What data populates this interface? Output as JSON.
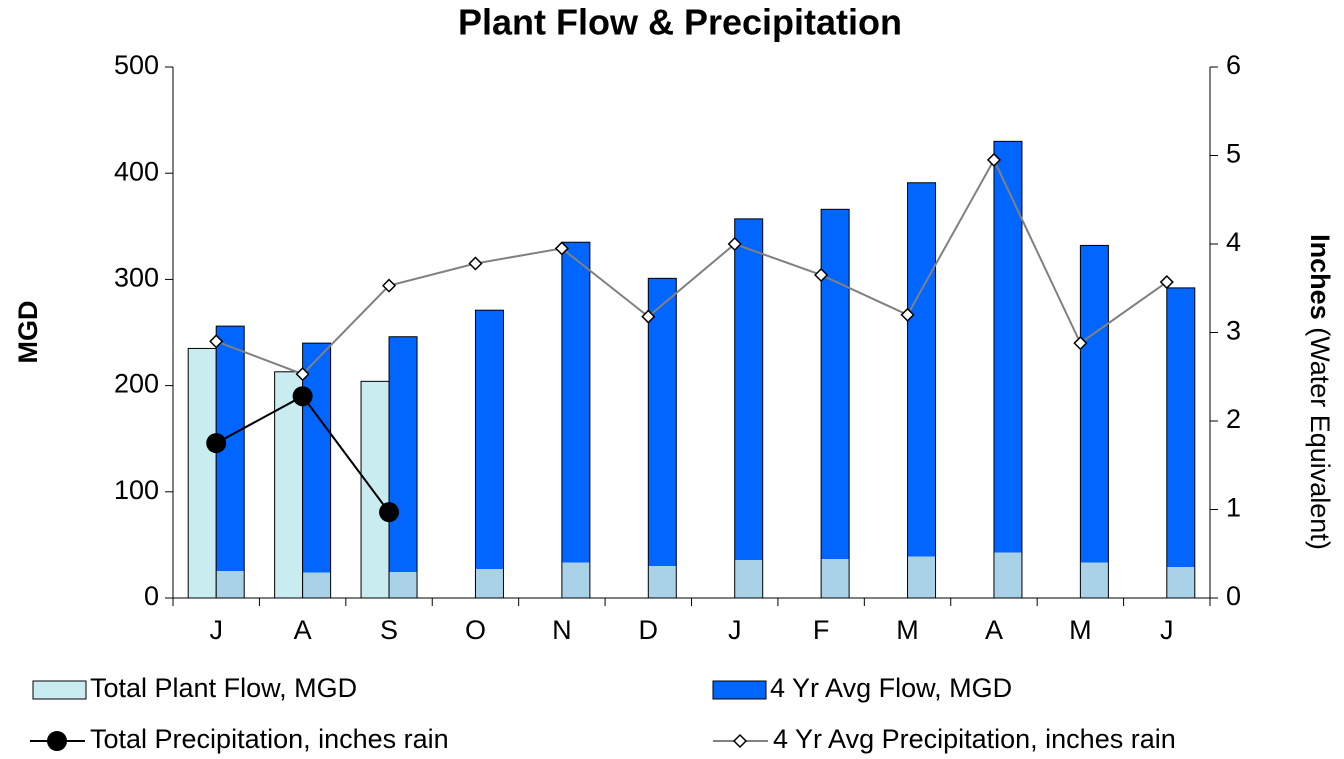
{
  "chart_data": {
    "type": "bar",
    "title": "Plant Flow & Precipitation",
    "y_label": "MGD",
    "y2_label": [
      "Inches",
      "(Water Equivalent)"
    ],
    "categories": [
      "J",
      "A",
      "S",
      "O",
      "N",
      "D",
      "J",
      "F",
      "M",
      "A",
      "M",
      "J"
    ],
    "ylim": [
      0,
      500
    ],
    "yticks": [
      0,
      100,
      200,
      300,
      400,
      500
    ],
    "y2lim": [
      0,
      6
    ],
    "y2ticks": [
      0,
      1,
      2,
      3,
      4,
      5,
      6
    ],
    "series": [
      {
        "name": "Total Plant Flow, MGD",
        "type": "bar",
        "color": "#c8ecf0",
        "values": [
          235,
          213,
          204,
          null,
          null,
          null,
          null,
          null,
          null,
          null,
          null,
          null
        ]
      },
      {
        "name": "4 Yr Avg Flow, MGD",
        "type": "bar",
        "color": "#0066ff",
        "values": [
          256,
          240,
          246,
          271,
          335,
          301,
          357,
          366,
          391,
          430,
          332,
          292
        ]
      },
      {
        "name": "Total Precipitation, inches rain",
        "type": "line",
        "axis": "y2",
        "color": "#000000",
        "marker": "circle",
        "values": [
          1.75,
          2.28,
          0.97,
          null,
          null,
          null,
          null,
          null,
          null,
          null,
          null,
          null
        ]
      },
      {
        "name": "4 Yr Avg Precipitation, inches rain",
        "type": "line",
        "axis": "y2",
        "color": "#808080",
        "marker": "diamond",
        "values": [
          2.9,
          2.53,
          3.53,
          3.78,
          3.95,
          3.18,
          4.0,
          3.65,
          3.2,
          4.95,
          2.88,
          3.57
        ]
      }
    ]
  }
}
